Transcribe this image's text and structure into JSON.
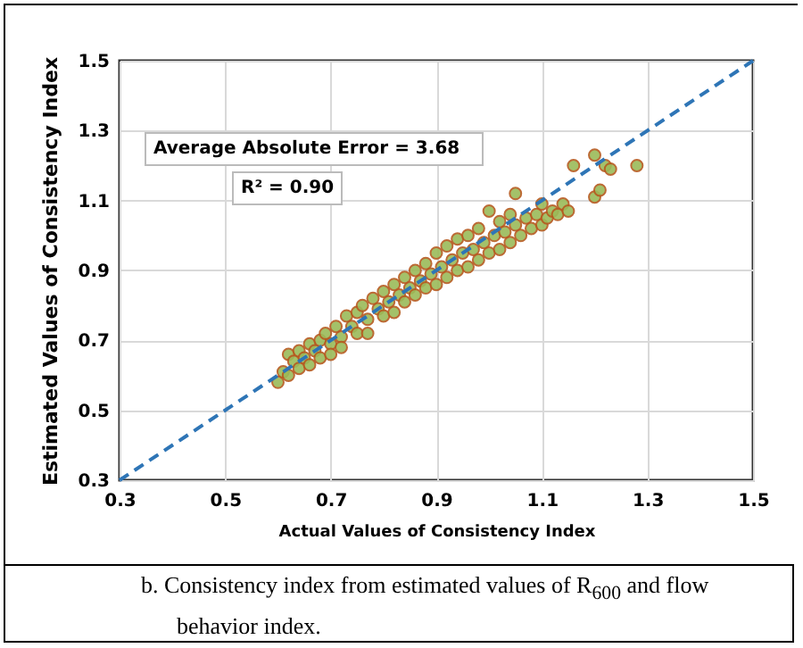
{
  "chart_data": {
    "type": "scatter",
    "xlabel": "Actual Values of Consistency Index",
    "ylabel": "Estimated Values of Consistency Index",
    "xlim": [
      0.3,
      1.5
    ],
    "xticks": [
      0.3,
      0.5,
      0.7,
      0.9,
      1.1,
      1.3,
      1.5
    ],
    "ylim": [
      0.3,
      1.5
    ],
    "yticks": [
      0.3,
      0.5,
      0.7,
      0.9,
      1.1,
      1.3,
      1.5
    ],
    "grid": true,
    "marker": "circle",
    "annotations": [
      "Average Absolute Error = 3.68",
      "R² = 0.90",
      "b.    Consistency index from estimated values of R$_{600}$ and flow behavior index."
    ],
    "series": [
      {
        "color": "#9bbb59",
        "x": [
          0.6,
          0.61,
          0.62,
          0.62,
          0.63,
          0.64,
          0.64,
          0.65,
          0.66,
          0.66,
          0.67,
          0.68,
          0.68,
          0.69,
          0.7,
          0.7,
          0.71,
          0.72,
          0.72,
          0.73,
          0.74,
          0.75,
          0.75,
          0.76,
          0.77,
          0.77,
          0.78,
          0.79,
          0.8,
          0.8,
          0.81,
          0.82,
          0.82,
          0.83,
          0.84,
          0.84,
          0.85,
          0.86,
          0.86,
          0.87,
          0.88,
          0.88,
          0.89,
          0.9,
          0.9,
          0.91,
          0.92,
          0.92,
          0.93,
          0.94,
          0.94,
          0.95,
          0.96,
          0.96,
          0.97,
          0.98,
          0.98,
          0.99,
          1.0,
          1.0,
          1.01,
          1.02,
          1.02,
          1.03,
          1.04,
          1.04,
          1.05,
          1.05,
          1.06,
          1.07,
          1.08,
          1.09,
          1.1,
          1.1,
          1.11,
          1.12,
          1.13,
          1.14,
          1.15,
          1.16,
          1.2,
          1.2,
          1.21,
          1.22,
          1.23,
          1.28
        ],
        "values": [
          0.58,
          0.61,
          0.66,
          0.6,
          0.64,
          0.67,
          0.62,
          0.65,
          0.69,
          0.63,
          0.67,
          0.7,
          0.65,
          0.72,
          0.69,
          0.66,
          0.74,
          0.71,
          0.68,
          0.77,
          0.74,
          0.78,
          0.72,
          0.8,
          0.76,
          0.72,
          0.82,
          0.79,
          0.77,
          0.84,
          0.81,
          0.86,
          0.78,
          0.83,
          0.88,
          0.81,
          0.85,
          0.9,
          0.83,
          0.87,
          0.92,
          0.85,
          0.89,
          0.95,
          0.86,
          0.91,
          0.97,
          0.88,
          0.93,
          0.99,
          0.9,
          0.95,
          1.0,
          0.91,
          0.96,
          1.02,
          0.93,
          0.98,
          1.07,
          0.95,
          1.0,
          1.04,
          0.96,
          1.01,
          1.06,
          0.98,
          1.12,
          1.03,
          1.0,
          1.05,
          1.02,
          1.06,
          1.09,
          1.03,
          1.05,
          1.07,
          1.06,
          1.09,
          1.07,
          1.2,
          1.23,
          1.11,
          1.13,
          1.2,
          1.19,
          1.2
        ]
      },
      {
        "type": "line",
        "color": "#2e75b6",
        "line_style": "dashed",
        "marker": "none",
        "x": [
          0.3,
          1.5
        ],
        "values": [
          0.3,
          1.5
        ]
      }
    ]
  }
}
